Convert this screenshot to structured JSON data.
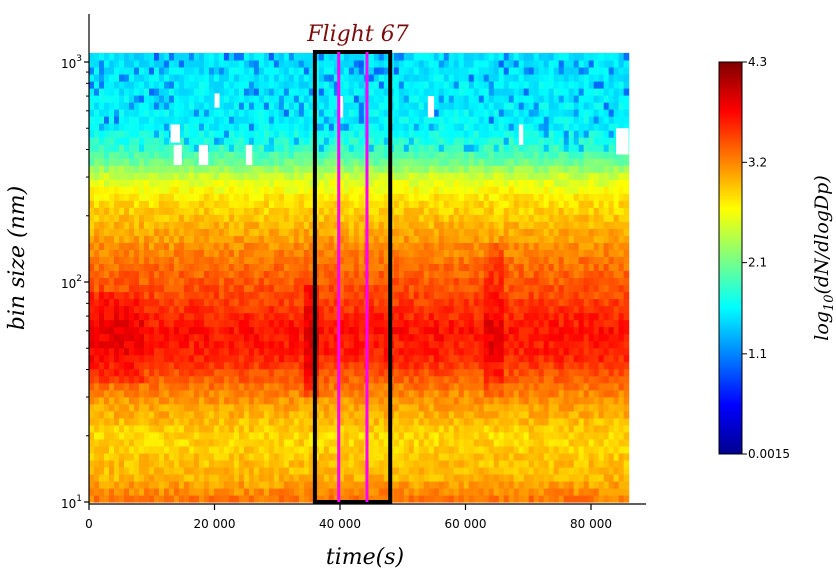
{
  "chart_data": {
    "type": "heatmap",
    "title": "Flight 67",
    "xlabel": "time(s)",
    "ylabel": "bin size (nm)",
    "x_ticks": [
      "0",
      "20 000",
      "40 000",
      "60 000",
      "80 000"
    ],
    "x_tick_values": [
      0,
      20000,
      40000,
      60000,
      80000
    ],
    "xlim": [
      0,
      90000
    ],
    "ylim": [
      10,
      1600
    ],
    "y_scale": "log",
    "y_ticks": [
      {
        "value": 10,
        "base": "10",
        "exp": "1"
      },
      {
        "value": 100,
        "base": "10",
        "exp": "2"
      },
      {
        "value": 1000,
        "base": "10",
        "exp": "3"
      }
    ],
    "data_x_range": [
      0,
      86000
    ],
    "data_y_range": [
      10,
      1100
    ],
    "colorbar": {
      "label": "log10(dN/dlogDp)",
      "label_main": "log",
      "label_sub": "10",
      "label_rest": "(dN/dlogDp)",
      "ticks": [
        "4.3",
        "3.2",
        "2.1",
        "1.1",
        "0.0015"
      ],
      "tick_values": [
        4.3,
        3.2,
        2.1,
        1.1,
        0.0015
      ],
      "range": [
        0.0015,
        4.3
      ],
      "colormap": "jet"
    },
    "highlight_box": {
      "x_range": [
        36000,
        48000
      ],
      "color": "#000000"
    },
    "vertical_lines": [
      {
        "x": 39800,
        "color": "#ff00ff"
      },
      {
        "x": 44300,
        "color": "#ff00ff"
      }
    ],
    "size_profile": [
      {
        "size": 10,
        "value": 3.3
      },
      {
        "size": 13,
        "value": 3.0
      },
      {
        "size": 20,
        "value": 2.85
      },
      {
        "size": 30,
        "value": 3.15
      },
      {
        "size": 45,
        "value": 3.6
      },
      {
        "size": 60,
        "value": 3.7
      },
      {
        "size": 90,
        "value": 3.45
      },
      {
        "size": 130,
        "value": 3.25
      },
      {
        "size": 180,
        "value": 3.0
      },
      {
        "size": 240,
        "value": 2.8
      },
      {
        "size": 300,
        "value": 2.5
      },
      {
        "size": 360,
        "value": 2.0
      },
      {
        "size": 500,
        "value": 1.6
      },
      {
        "size": 1100,
        "value": 1.5
      }
    ],
    "missing_cells": [
      {
        "x": [
          13000,
          14500
        ],
        "y": [
          430,
          520
        ]
      },
      {
        "x": [
          13500,
          14800
        ],
        "y": [
          340,
          420
        ]
      },
      {
        "x": [
          17500,
          19000
        ],
        "y": [
          340,
          420
        ]
      },
      {
        "x": [
          20000,
          20800
        ],
        "y": [
          620,
          720
        ]
      },
      {
        "x": [
          25000,
          26000
        ],
        "y": [
          340,
          420
        ]
      },
      {
        "x": [
          40000,
          40500
        ],
        "y": [
          560,
          700
        ]
      },
      {
        "x": [
          54000,
          55000
        ],
        "y": [
          560,
          700
        ]
      },
      {
        "x": [
          68500,
          69200
        ],
        "y": [
          420,
          520
        ]
      },
      {
        "x": [
          84000,
          86000
        ],
        "y": [
          380,
          500
        ]
      }
    ]
  }
}
